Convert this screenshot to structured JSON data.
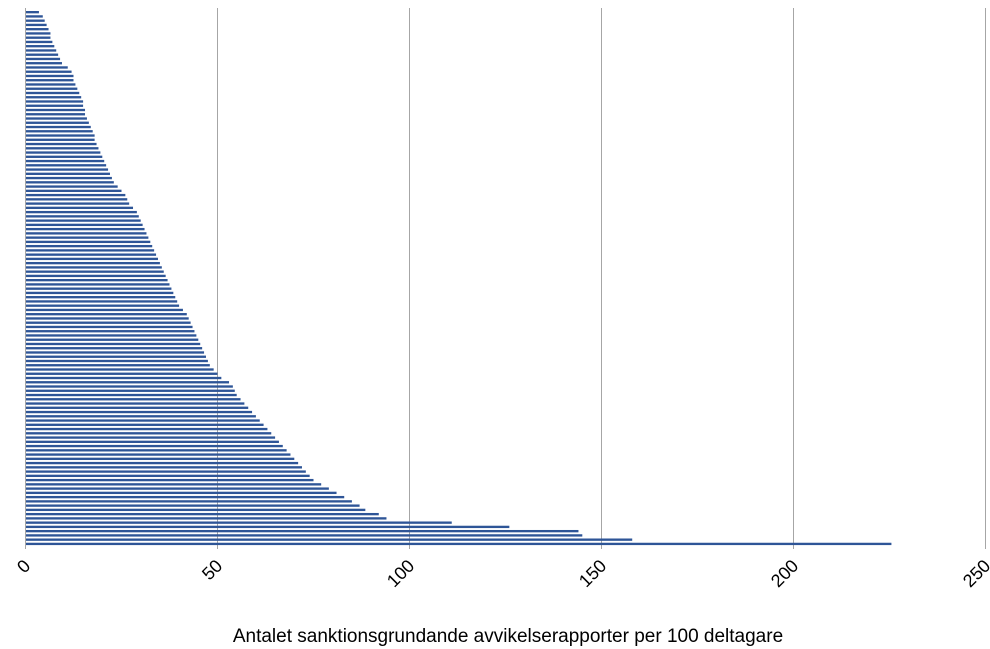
{
  "chart_data": {
    "type": "bar",
    "orientation": "horizontal",
    "title": "",
    "xlabel": "Antalet sanktionsgrundande avvikelserapporter per 100 deltagare",
    "ylabel": "",
    "xlim": [
      0,
      250
    ],
    "xticks": [
      0,
      50,
      100,
      150,
      200,
      250
    ],
    "tick_labels": [
      "0",
      "50",
      "100",
      "150",
      "200",
      "250"
    ],
    "grid": "vertical",
    "legend": "none",
    "bar_color": "#2E5597",
    "grid_color": "#A6A6A6",
    "values": [
      3.5,
      4.5,
      5,
      5.5,
      6,
      6.5,
      6.5,
      7,
      7.5,
      8,
      8.5,
      9,
      9.5,
      11,
      12,
      12.5,
      12.5,
      13,
      13.5,
      14,
      14.5,
      15,
      15,
      15.5,
      15.5,
      16,
      16.5,
      17,
      17.5,
      18,
      18,
      18.5,
      19,
      19.5,
      20,
      20.5,
      21,
      21.5,
      22,
      22.5,
      23,
      24,
      25,
      26,
      26.5,
      27,
      28,
      29,
      29.5,
      30,
      30.5,
      31,
      31.5,
      32,
      32.5,
      33,
      33.5,
      34,
      34.5,
      35,
      35.5,
      36,
      36.5,
      37,
      37.5,
      38,
      38.5,
      39,
      39.5,
      40,
      41,
      42,
      42.5,
      43,
      43.5,
      44,
      44.5,
      45,
      45.5,
      46,
      46.5,
      47,
      47.5,
      48,
      49,
      50,
      51,
      53,
      54,
      54.5,
      55,
      56,
      57,
      58,
      59,
      60,
      61,
      62,
      63,
      64,
      65,
      66,
      67,
      68,
      69,
      70,
      71,
      72,
      73,
      74,
      75,
      77,
      79,
      81,
      83,
      85,
      87,
      88.5,
      92,
      94,
      111,
      126,
      144,
      145,
      158,
      225.5
    ]
  }
}
